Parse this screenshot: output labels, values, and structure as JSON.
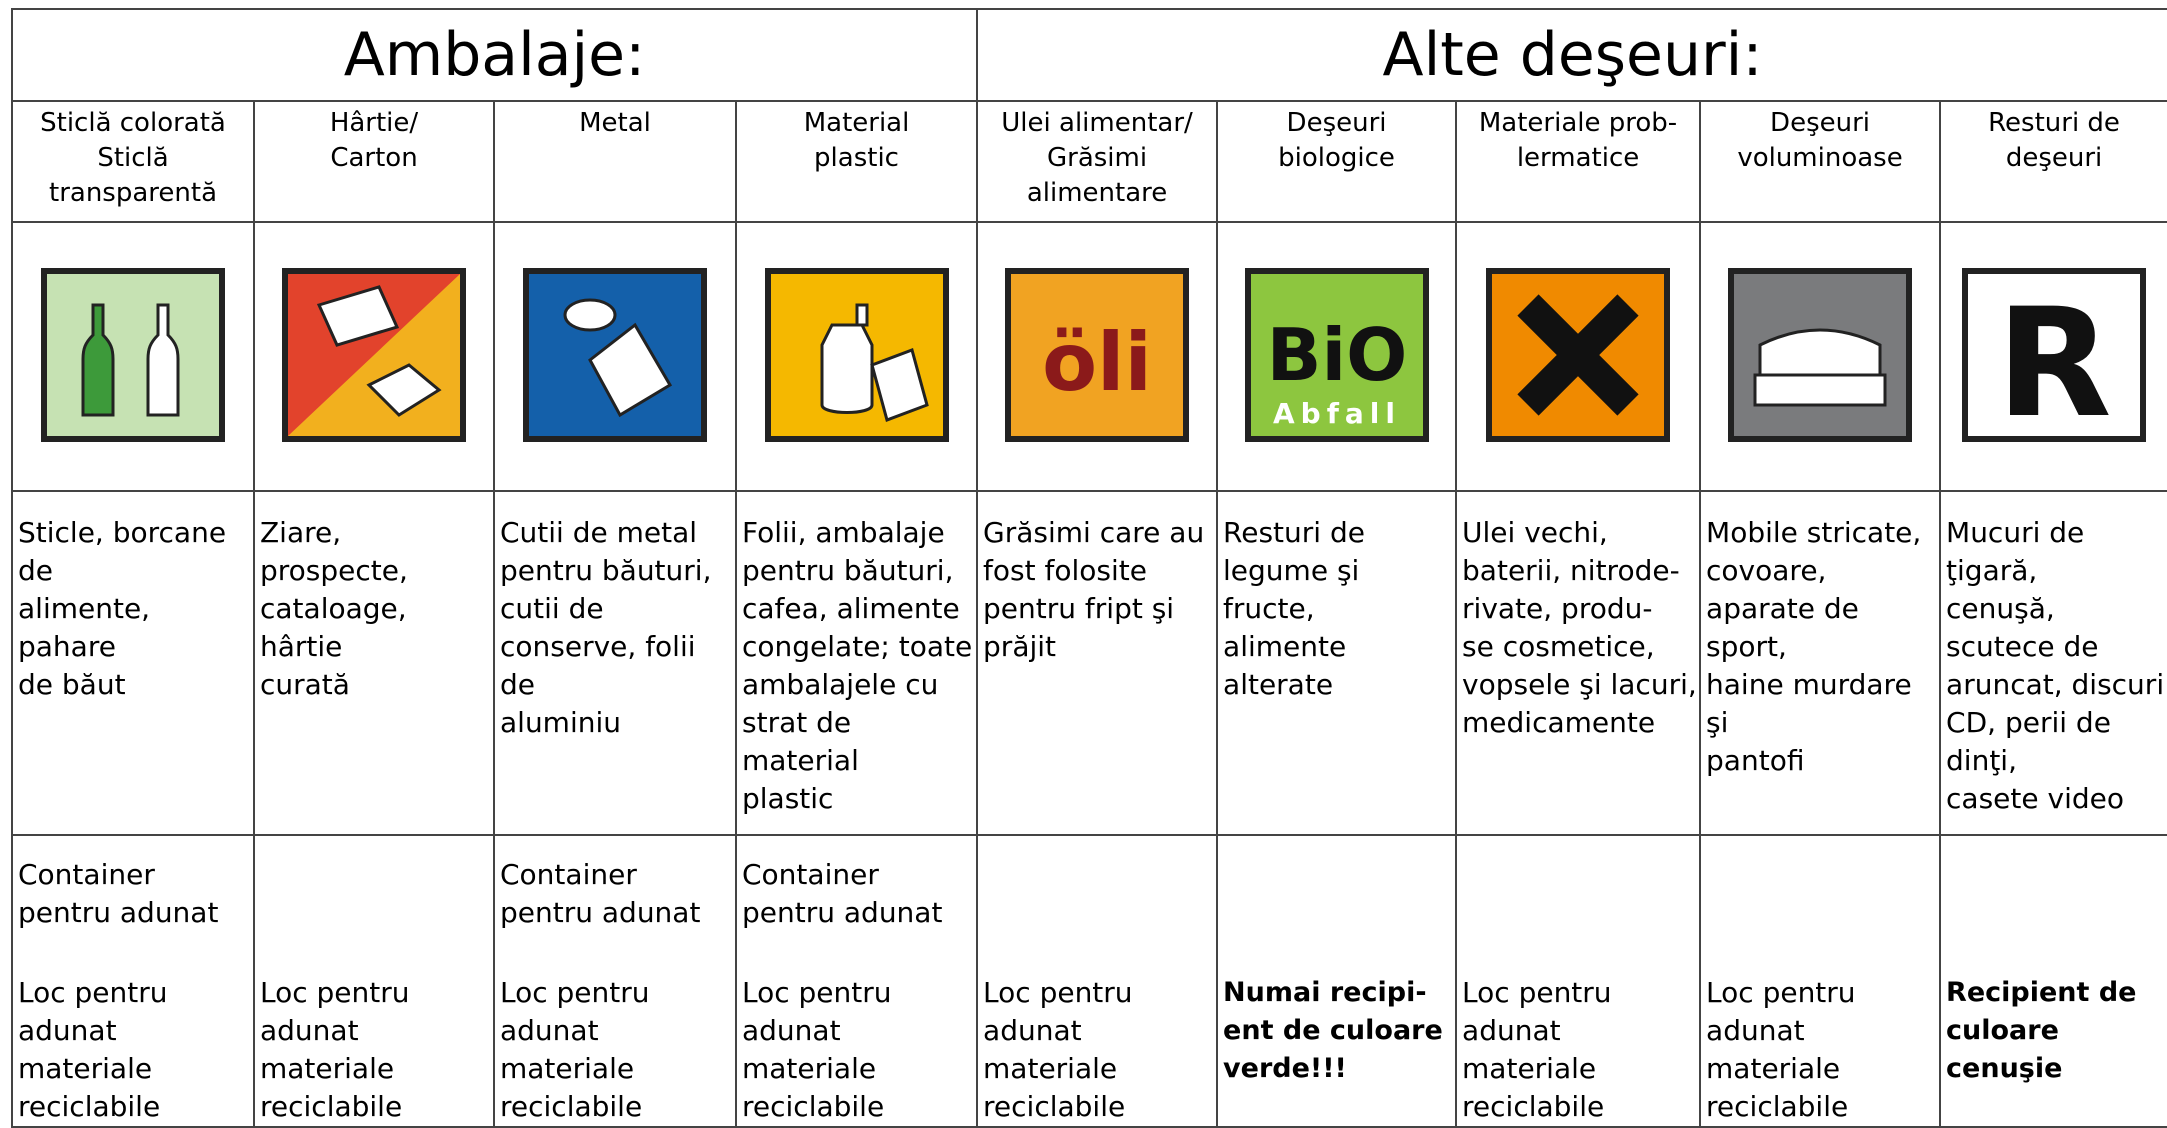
{
  "header": {
    "groups": [
      {
        "title": "Ambalaje:",
        "span": 4
      },
      {
        "title": "Alte deşeuri:",
        "span": 5
      }
    ]
  },
  "columns": [
    {
      "name": "Sticlă colorată\nSticlă\ntransparentă",
      "description": "Sticle, borcane de\nalimente, pahare\nde băut",
      "container": "Container\npentru adunat",
      "collection": "Loc pentru\nadunat materiale\nreciclabile",
      "bold": false
    },
    {
      "name": "Hârtie/\nCarton",
      "description": "Ziare, prospecte,\ncataloage, hârtie\ncurată",
      "collection": "Loc pentru\nadunat materiale\nreciclabile",
      "bold": false
    },
    {
      "name": "Metal",
      "description": "Cutii de metal\npentru băuturi,\ncutii de\nconserve, folii de\naluminiu",
      "container": "Container\npentru adunat",
      "collection": "Loc pentru\nadunat materiale\nreciclabile",
      "bold": false
    },
    {
      "name": "Material\nplastic",
      "description": "Folii, ambalaje\npentru băuturi,\ncafea, alimente\ncongelate; toate\nambalajele cu\nstrat de material\nplastic",
      "container": "Container\npentru adunat",
      "collection": "Loc pentru\nadunat materiale\nreciclabile",
      "bold": false
    },
    {
      "name": "Ulei alimentar/\nGrăsimi\nalimentare",
      "icon_text": [
        "öli"
      ],
      "description": "Grăsimi care au\nfost folosite\npentru fript şi\nprăjit",
      "collection": "Loc pentru\nadunat materiale\nreciclabile",
      "bold": false
    },
    {
      "name": "Deşeuri\nbiologice",
      "icon_text": [
        "BiO",
        "Abfall"
      ],
      "description": "Resturi de\nlegume şi fructe,\nalimente alterate",
      "collection": "Numai recipi-\nent de culoare\nverde!!!",
      "bold": true
    },
    {
      "name": "Materiale prob-\nlermatice",
      "description": "Ulei vechi,\nbaterii, nitrode-\nrivate, produ-\nse cosmetice,\nvopsele şi lacuri,\nmedicamente",
      "collection": "Loc pentru\nadunat materiale\nreciclabile",
      "bold": false
    },
    {
      "name": "Deşeuri\nvoluminoase",
      "description": "Mobile stricate,\ncovoare,\naparate de sport,\nhaine murdare şi\npantofi",
      "collection": "Loc pentru\nadunat materiale\nreciclabile",
      "bold": false
    },
    {
      "name": "Resturi de\ndeşeuri",
      "icon_text": [
        "R"
      ],
      "description": "Mucuri de ţigară,\ncenuşă,\nscutece de\naruncat, discuri\nCD, perii de dinţi,\ncasete video",
      "collection": "Recipient de\nculoare cenuşie",
      "bold": true
    }
  ]
}
